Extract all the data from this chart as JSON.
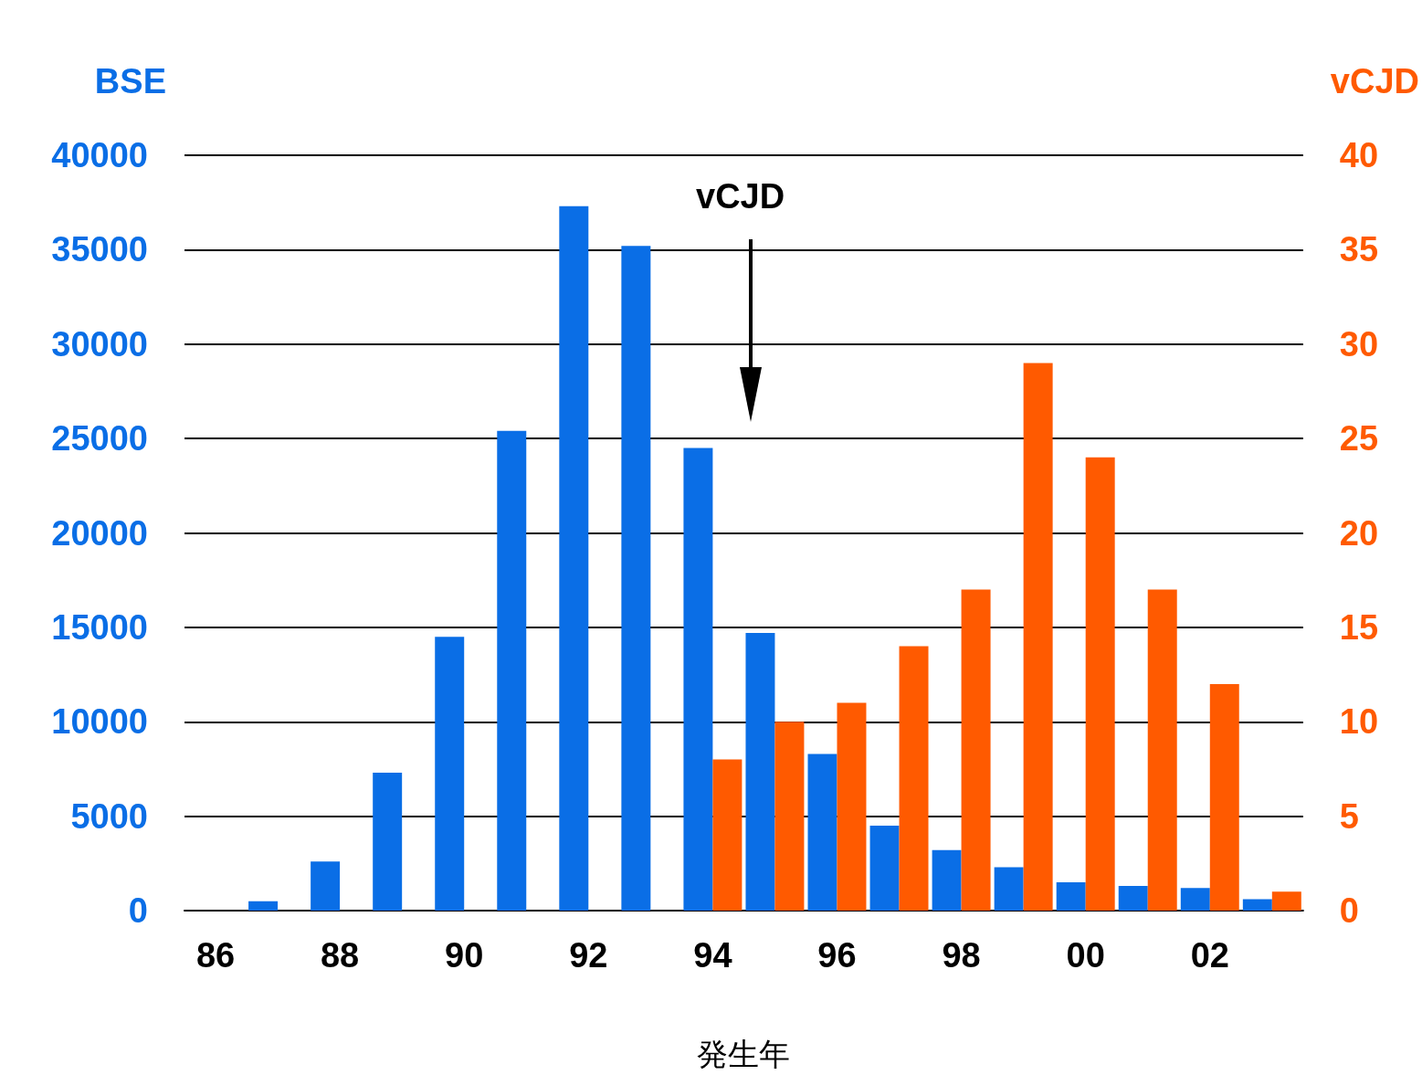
{
  "chart_data": {
    "type": "bar",
    "xlabel": "発生年",
    "ylabel": "BSE",
    "y2label": "vCJD",
    "categories": [
      "86",
      null,
      "88",
      null,
      "90",
      null,
      "92",
      null,
      "94",
      null,
      "96",
      null,
      "98",
      null,
      "00",
      null,
      "02",
      null
    ],
    "series": [
      {
        "color": "#0a6ee6",
        "values": [
          null,
          500,
          2600,
          7300,
          14500,
          25400,
          37300,
          35200,
          24500,
          14700,
          8300,
          4500,
          3200,
          2300,
          1500,
          1300,
          1200,
          600
        ]
      },
      {
        "axis": "y2",
        "color": "#ff5a00",
        "values": [
          null,
          null,
          null,
          null,
          null,
          null,
          null,
          null,
          8,
          10,
          11,
          14,
          17,
          29,
          24,
          17,
          12,
          1
        ]
      }
    ],
    "ylim": [
      0,
      40000
    ],
    "yticks": [
      0,
      5000,
      10000,
      15000,
      20000,
      25000,
      30000,
      35000,
      40000
    ],
    "y2lim": [
      0,
      40
    ],
    "y2ticks": [
      0,
      5,
      10,
      15,
      20,
      25,
      30,
      35,
      40
    ],
    "grid": "y",
    "annotations": [
      "vCJD"
    ]
  }
}
